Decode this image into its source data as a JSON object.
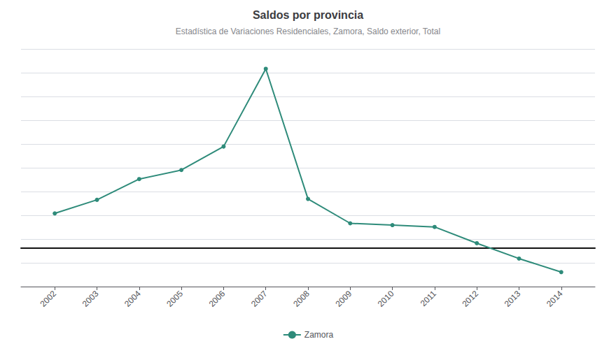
{
  "chart_data": {
    "type": "line",
    "title": "Saldos por provincia",
    "subtitle": "Estadística de Variaciones Residenciales, Zamora, Saldo exterior, Total",
    "x": [
      2002,
      2003,
      2004,
      2005,
      2006,
      2007,
      2008,
      2009,
      2010,
      2011,
      2012,
      2013,
      2014
    ],
    "series": [
      {
        "name": "Zamora",
        "color": "#2e8b7a",
        "values": [
          380,
          530,
          760,
          860,
          1120,
          1980,
          540,
          270,
          250,
          230,
          50,
          -120,
          -270
        ]
      }
    ],
    "xlim": [
      2001.2,
      2014.8
    ],
    "xticks": [
      2002,
      2003,
      2004,
      2005,
      2006,
      2007,
      2008,
      2009,
      2010,
      2011,
      2012,
      2013,
      2014
    ],
    "ylim": [
      -430,
      2200
    ],
    "yticks": [
      -430,
      -167,
      96,
      359,
      622,
      885,
      1148,
      1411,
      1674,
      1937,
      2200
    ],
    "grid": true,
    "legend": "bottom",
    "tick_labels": "x",
    "marker": "circle"
  }
}
